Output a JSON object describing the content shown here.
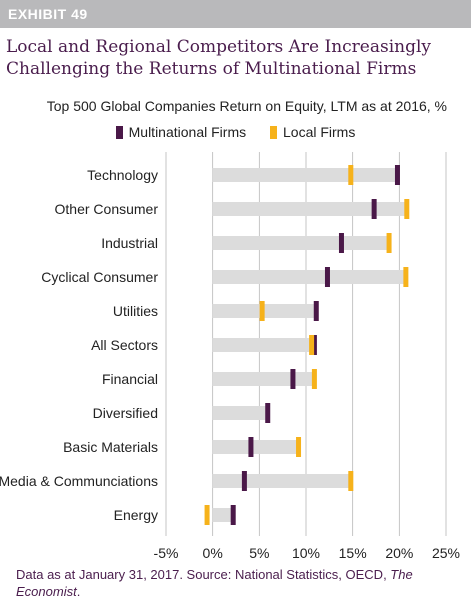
{
  "exhibit": "EXHIBIT 49",
  "title": "Local and Regional Competitors Are Increasingly Challenging the Returns of Multinational Firms",
  "colors": {
    "multinational": "#4a1848",
    "local": "#f6b21b",
    "range_bar": "#dcdcdc",
    "title": "#4a1d4d",
    "header_bar": "#b9b9bb"
  },
  "source_note": {
    "main": "Data as at January 31, 2017. Source: National Statistics, OECD, ",
    "italic": "The Economist",
    "end": "."
  },
  "chart_data": {
    "type": "bar",
    "subtype": "dumbbell-range",
    "title": "Top 500 Global Companies Return on Equity, LTM as at 2016, %",
    "legend_position": "top",
    "series_names": [
      "Multinational Firms",
      "Local Firms"
    ],
    "categories": [
      "Technology",
      "Other Consumer",
      "Industrial",
      "Cyclical Consumer",
      "Utilities",
      "All Sectors",
      "Financial",
      "Diversified",
      "Basic Materials",
      "Media & Communciations",
      "Energy"
    ],
    "series": [
      {
        "name": "Multinational Firms",
        "values": [
          19.8,
          17.3,
          13.8,
          12.3,
          11.1,
          10.9,
          8.6,
          5.9,
          4.1,
          3.4,
          2.2
        ]
      },
      {
        "name": "Local Firms",
        "values": [
          14.8,
          20.8,
          18.9,
          20.7,
          5.3,
          10.6,
          10.9,
          null,
          9.2,
          14.8,
          -0.6
        ]
      }
    ],
    "bar_start": [
      0,
      0,
      0,
      0,
      0,
      0,
      0,
      0,
      0,
      0,
      0
    ],
    "bar_end": [
      19.8,
      20.8,
      18.9,
      20.7,
      11.1,
      10.9,
      10.9,
      5.9,
      9.2,
      14.8,
      2.2
    ],
    "x_ticks": [
      "-5%",
      "0%",
      "5%",
      "10%",
      "15%",
      "20%",
      "25%"
    ],
    "x_tick_values": [
      -5,
      0,
      5,
      10,
      15,
      20,
      25
    ],
    "xlim": [
      -5,
      25
    ],
    "grid": "vertical",
    "xlabel": "",
    "ylabel": ""
  }
}
